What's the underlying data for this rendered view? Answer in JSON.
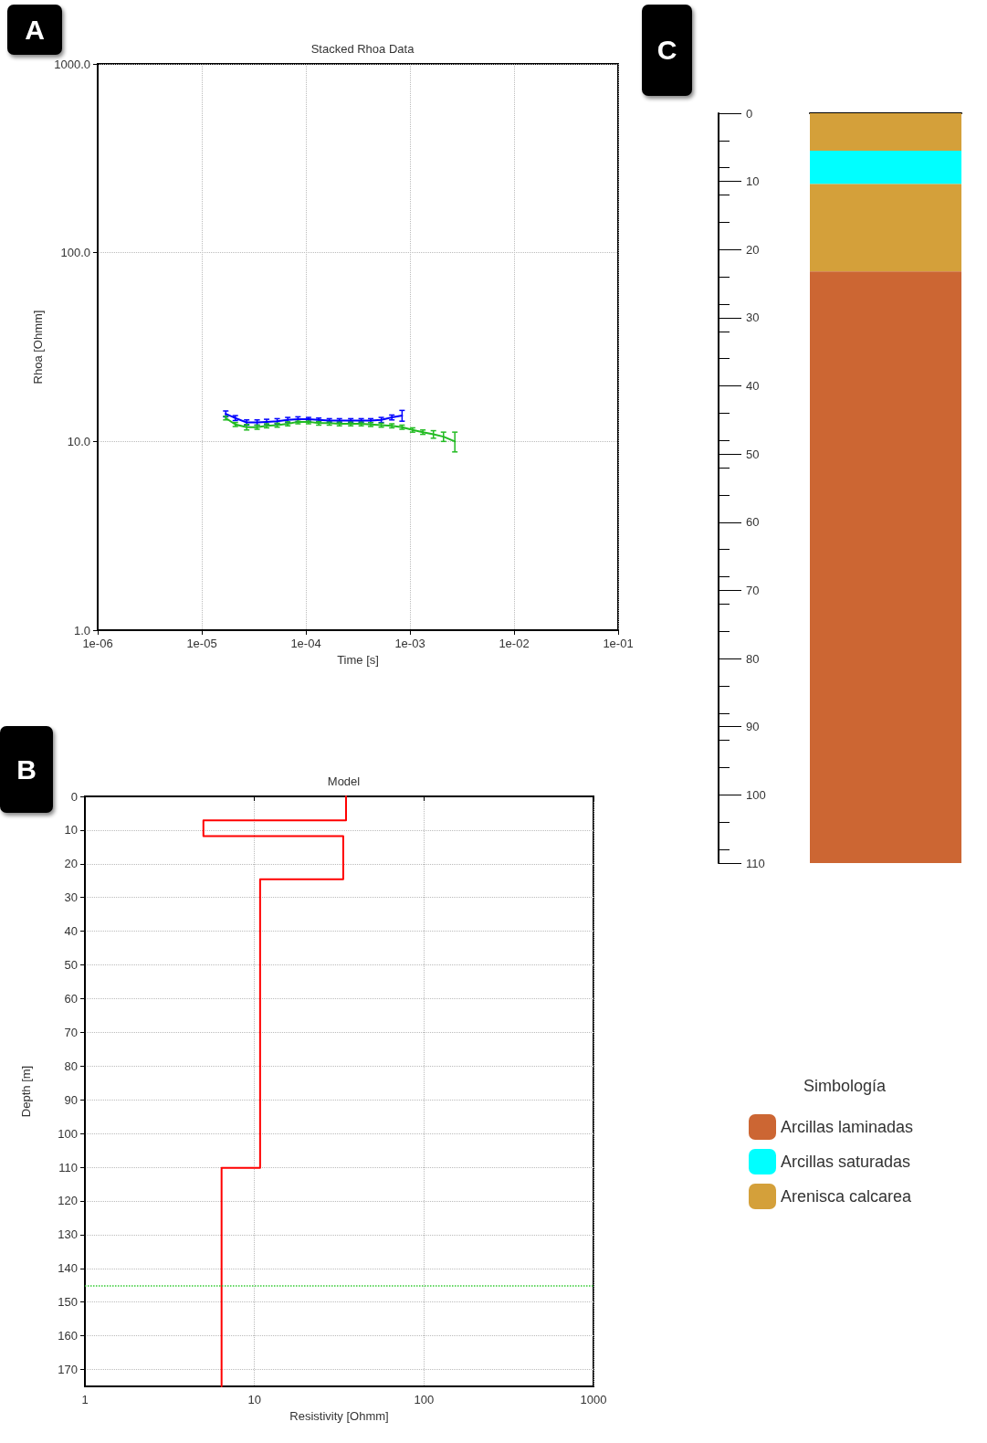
{
  "chart_data": [
    {
      "type": "line",
      "title": "Stacked Rhoa Data",
      "xlabel": "Time [s]",
      "ylabel": "Rhoa [Ohmm]",
      "log": "xy",
      "grid": true,
      "marker": "none",
      "annotations": [
        "A"
      ],
      "xlim": [
        1e-06,
        0.1
      ],
      "xticks": [
        {
          "value": 1e-06,
          "label": "1e-06"
        },
        {
          "value": 1e-05,
          "label": "1e-05"
        },
        {
          "value": 0.0001,
          "label": "1e-04"
        },
        {
          "value": 0.001,
          "label": "1e-03"
        },
        {
          "value": 0.01,
          "label": "1e-02"
        },
        {
          "value": 0.1,
          "label": "1e-01"
        }
      ],
      "ylim": [
        1,
        1000
      ],
      "yticks": [
        {
          "value": 1,
          "label": "1.0"
        },
        {
          "value": 10,
          "label": "10.0"
        },
        {
          "value": 100,
          "label": "100.0"
        },
        {
          "value": 1000,
          "label": "1000.0"
        }
      ],
      "series": [
        {
          "color": "#0000ff",
          "x": [
            1.7e-05,
            2.1e-05,
            2.7e-05,
            3.4e-05,
            4.2e-05,
            5.3e-05,
            6.7e-05,
            8.4e-05,
            0.000106,
            0.000133,
            0.000168,
            0.00021,
            0.00027,
            0.00034,
            0.00042,
            0.00053,
            0.00067,
            0.00084
          ],
          "values": [
            14.0,
            13.3,
            12.6,
            12.6,
            12.7,
            12.8,
            13.0,
            13.1,
            13.1,
            13.0,
            12.9,
            12.9,
            12.9,
            12.9,
            12.9,
            13.0,
            13.4,
            13.7
          ],
          "errors": [
            0.5,
            0.4,
            0.4,
            0.4,
            0.4,
            0.4,
            0.4,
            0.4,
            0.3,
            0.3,
            0.3,
            0.3,
            0.3,
            0.3,
            0.3,
            0.4,
            0.4,
            0.9
          ]
        },
        {
          "color": "#22bb22",
          "x": [
            1.7e-05,
            2.1e-05,
            2.7e-05,
            3.4e-05,
            4.2e-05,
            5.3e-05,
            6.7e-05,
            8.4e-05,
            0.000106,
            0.000133,
            0.000168,
            0.00021,
            0.00027,
            0.00034,
            0.00042,
            0.00053,
            0.00067,
            0.00084,
            0.00106,
            0.00133,
            0.00168,
            0.0021,
            0.0027
          ],
          "values": [
            13.3,
            12.3,
            11.9,
            11.9,
            12.1,
            12.2,
            12.4,
            12.7,
            12.7,
            12.5,
            12.5,
            12.4,
            12.4,
            12.4,
            12.3,
            12.2,
            12.1,
            11.9,
            11.5,
            11.2,
            10.9,
            10.6,
            10.0
          ],
          "errors": [
            0.3,
            0.3,
            0.4,
            0.3,
            0.3,
            0.3,
            0.3,
            0.3,
            0.3,
            0.3,
            0.3,
            0.3,
            0.3,
            0.3,
            0.3,
            0.3,
            0.3,
            0.3,
            0.3,
            0.3,
            0.5,
            0.6,
            1.2
          ]
        }
      ]
    },
    {
      "type": "line",
      "title": "Model",
      "xlabel": "Resistivity [Ohmm]",
      "ylabel": "Depth [m]",
      "log": "x",
      "grid": true,
      "marker": "none",
      "annotations": [
        "B"
      ],
      "xlim": [
        1,
        1000
      ],
      "xticks": [
        1,
        10,
        100,
        1000
      ],
      "ylim": [
        175,
        0
      ],
      "yticks": [
        0,
        10,
        20,
        30,
        40,
        50,
        60,
        70,
        80,
        90,
        100,
        110,
        120,
        130,
        140,
        150,
        160,
        170
      ],
      "ref_lines": [
        {
          "axis": "y",
          "value": 145,
          "color": "#33cc33",
          "line_style": "dotted"
        }
      ],
      "series": [
        {
          "color": "#ff0000",
          "x": [
            34.7,
            34.7,
            5.0,
            5.0,
            33.4,
            33.4,
            10.8,
            10.8,
            6.4,
            6.4
          ],
          "values": [
            0,
            7.1,
            7.1,
            11.8,
            11.8,
            24.6,
            24.6,
            110.2,
            110.2,
            175
          ]
        }
      ]
    },
    {
      "type": "bar",
      "stacked": true,
      "categories": [
        null
      ],
      "tick_labels": "y",
      "grid": false,
      "legend": "bottom",
      "legend_title": "Simbología",
      "annotations": [
        "C"
      ],
      "ylim": [
        110,
        0
      ],
      "yticks": [
        0,
        10,
        20,
        30,
        40,
        50,
        60,
        70,
        80,
        90,
        100,
        110
      ],
      "series": [
        {
          "name": "Arenisca calcarea",
          "color": "#d4a03a",
          "values": [
            5.5
          ]
        },
        {
          "name": "Arcillas saturadas",
          "color": "#00ffff",
          "values": [
            4.9
          ]
        },
        {
          "color": "#d4a03a",
          "values": [
            12.8
          ]
        },
        {
          "name": "Arcillas laminadas",
          "color": "#cc6633",
          "values": [
            86.8
          ]
        }
      ]
    }
  ]
}
